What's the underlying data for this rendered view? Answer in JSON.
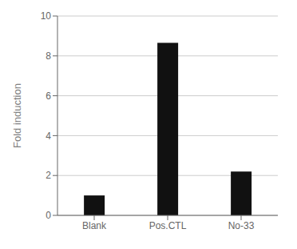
{
  "chart_data": {
    "type": "bar",
    "categories": [
      "Blank",
      "Pos.CTL",
      "No-33"
    ],
    "values": [
      1.0,
      8.65,
      2.2
    ],
    "color": "#111111",
    "ylabel": "Fold induction",
    "ylim": [
      0,
      10
    ],
    "yticks": [
      0,
      2,
      4,
      6,
      8,
      10
    ],
    "grid": true
  }
}
